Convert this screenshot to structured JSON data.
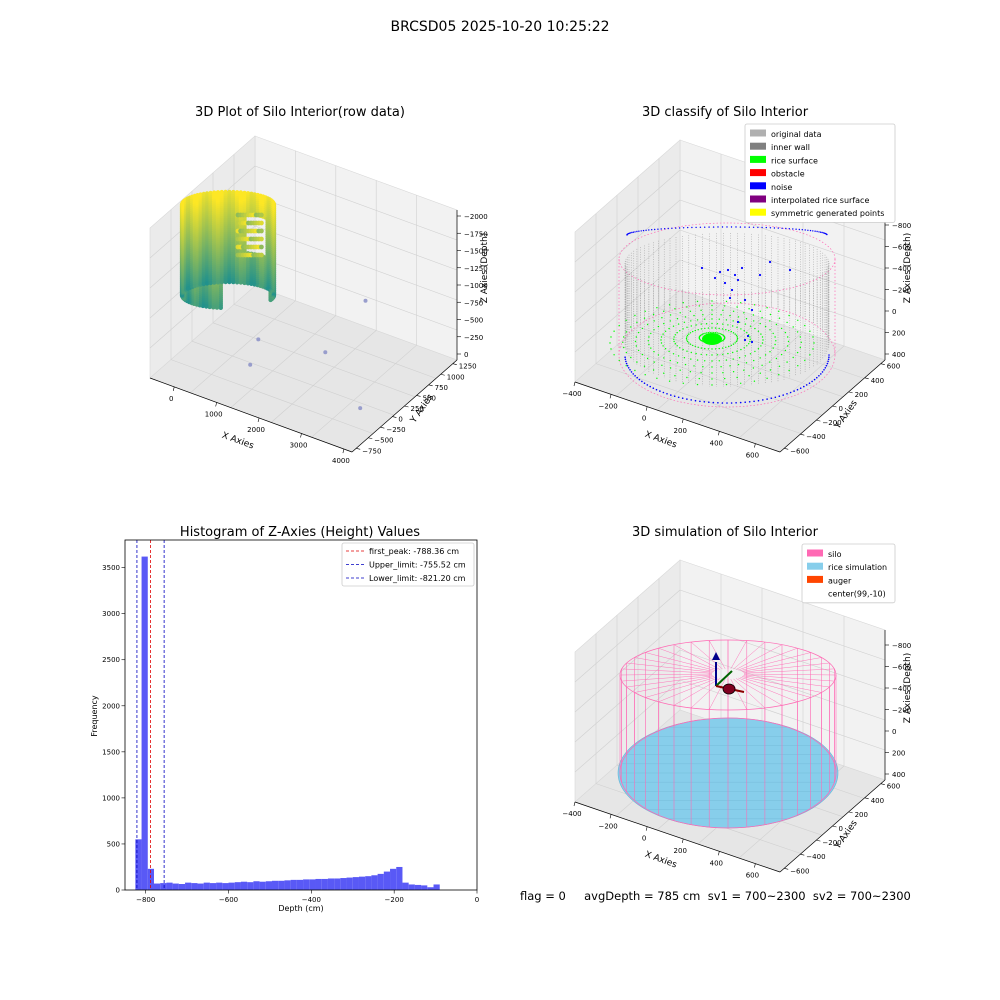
{
  "suptitle": "BRCSD05 2025-10-20 10:25:22",
  "status_line": "flag = 0     avgDepth = 785 cm  sv1 = 700~2300  sv2 = 700~2300",
  "colors": {
    "raw_low": "#21918c",
    "raw_high": "#fde725",
    "raw_outlier": "#8a8fc7",
    "legend_original": "#b0b0b0",
    "legend_inner_wall": "#808080",
    "rice_surface": "#00ff00",
    "obstacle": "#ff0000",
    "noise": "#0000ff",
    "interpolated": "#800080",
    "symmetric": "#ffff00",
    "silo": "#ff69b4",
    "rice_sim": "#87ceeb",
    "auger": "#ff4500",
    "hist_bar": "#5050f5",
    "peak_line": "#e00000",
    "limit_line": "#0000c0"
  },
  "chart_data": [
    {
      "type": "scatter",
      "title": "3D Plot of Silo Interior(row data)",
      "xlabel": "X Axies",
      "ylabel": "Y Axies",
      "zlabel": "Z Axies (Depth)",
      "x_ticks": [
        "0",
        "1000",
        "2000",
        "3000",
        "4000"
      ],
      "y_ticks": [
        "−750",
        "−500",
        "−250",
        "0",
        "250",
        "500",
        "750",
        "1000",
        "1250"
      ],
      "z_ticks": [
        "0",
        "−250",
        "−500",
        "−750",
        "−1000",
        "−1250",
        "−1500",
        "−1750",
        "−2000"
      ],
      "outliers": [
        {
          "x": 3100,
          "y": 400,
          "z": -900
        },
        {
          "x": 2950,
          "y": -300,
          "z": -1250
        },
        {
          "x": 1200,
          "y": -150,
          "z": -1550
        },
        {
          "x": 1350,
          "y": -450,
          "z": -1700
        },
        {
          "x": 4000,
          "y": -500,
          "z": -1700
        }
      ]
    },
    {
      "type": "scatter",
      "title": "3D classify of Silo Interior",
      "xlabel": "X Axies",
      "ylabel": "Y Axies",
      "zlabel": "Z Axies (Depth)",
      "x_ticks": [
        "−400",
        "−200",
        "0",
        "200",
        "400",
        "600"
      ],
      "y_ticks": [
        "−600",
        "−400",
        "−200",
        "0",
        "200",
        "400",
        "600"
      ],
      "z_ticks": [
        "400",
        "200",
        "0",
        "−200",
        "−400",
        "−600",
        "−800"
      ],
      "legend": [
        "original data",
        "inner wall",
        "rice surface",
        "obstacle",
        "noise",
        "interpolated rice surface",
        "symmetric generated points"
      ]
    },
    {
      "type": "bar",
      "title": "Histogram of Z-Axies (Height) Values",
      "xlabel": "Depth (cm)",
      "ylabel": "Frequency",
      "xlim": [
        -850,
        0
      ],
      "ylim": [
        0,
        3800
      ],
      "x_ticks": [
        -800,
        -600,
        -400,
        -200,
        0
      ],
      "y_ticks": [
        0,
        500,
        1000,
        1500,
        2000,
        2500,
        3000,
        3500
      ],
      "bin_start": -825,
      "bin_width": 15,
      "values": [
        550,
        3620,
        230,
        70,
        75,
        80,
        70,
        65,
        80,
        75,
        70,
        80,
        75,
        80,
        75,
        80,
        85,
        90,
        85,
        95,
        90,
        95,
        100,
        100,
        105,
        110,
        110,
        115,
        115,
        120,
        120,
        125,
        125,
        130,
        135,
        140,
        145,
        150,
        160,
        175,
        200,
        230,
        250,
        80,
        60,
        55,
        50,
        30,
        60,
        0
      ],
      "lines": [
        {
          "label": "first_peak: -788.36 cm",
          "x": -788.36,
          "color_key": "peak_line"
        },
        {
          "label": "Upper_limit: -755.52 cm",
          "x": -755.52,
          "color_key": "limit_line"
        },
        {
          "label": "Lower_limit: -821.20 cm",
          "x": -821.2,
          "color_key": "limit_line"
        }
      ]
    },
    {
      "type": "scatter",
      "title": "3D simulation of Silo Interior",
      "xlabel": "X Axies",
      "ylabel": "Y Axies",
      "zlabel": "Z Axies (Depth)",
      "x_ticks": [
        "−400",
        "−200",
        "0",
        "200",
        "400",
        "600"
      ],
      "y_ticks": [
        "−600",
        "−400",
        "−200",
        "0",
        "200",
        "400",
        "600"
      ],
      "z_ticks": [
        "400",
        "200",
        "0",
        "−200",
        "−400",
        "−600",
        "−800"
      ],
      "legend": [
        "silo",
        "rice simulation",
        "auger",
        "center(99,-10)"
      ]
    }
  ]
}
